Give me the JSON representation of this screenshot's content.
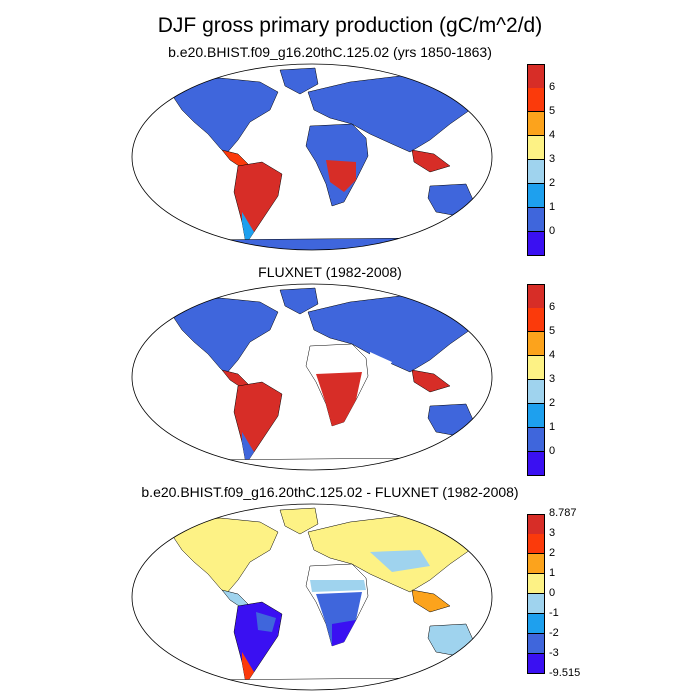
{
  "title": "DJF gross primary production (gC/m^2/d)",
  "colors": [
    "#3a10f2",
    "#3f66dc",
    "#1ea0ee",
    "#9fd3ee",
    "#fdf285",
    "#fca31c",
    "#fb3a0b",
    "#d72d27"
  ],
  "panels": [
    {
      "title": "b.e20.BHIST.f09_g16.20thC.125.02 (yrs 1850-1863)",
      "colorbar_labels": [
        "6",
        "5",
        "4",
        "3",
        "2",
        "1",
        "0"
      ],
      "field": "model"
    },
    {
      "title": "FLUXNET (1982-2008)",
      "colorbar_labels": [
        "6",
        "5",
        "4",
        "3",
        "2",
        "1",
        "0"
      ],
      "field": "obs"
    },
    {
      "title": "b.e20.BHIST.f09_g16.20thC.125.02 - FLUXNET (1982-2008)",
      "colorbar_labels": [
        "8.787",
        "3",
        "2",
        "1",
        "0",
        "-1",
        "-2",
        "-3",
        "-9.515"
      ],
      "field": "diff"
    }
  ]
}
